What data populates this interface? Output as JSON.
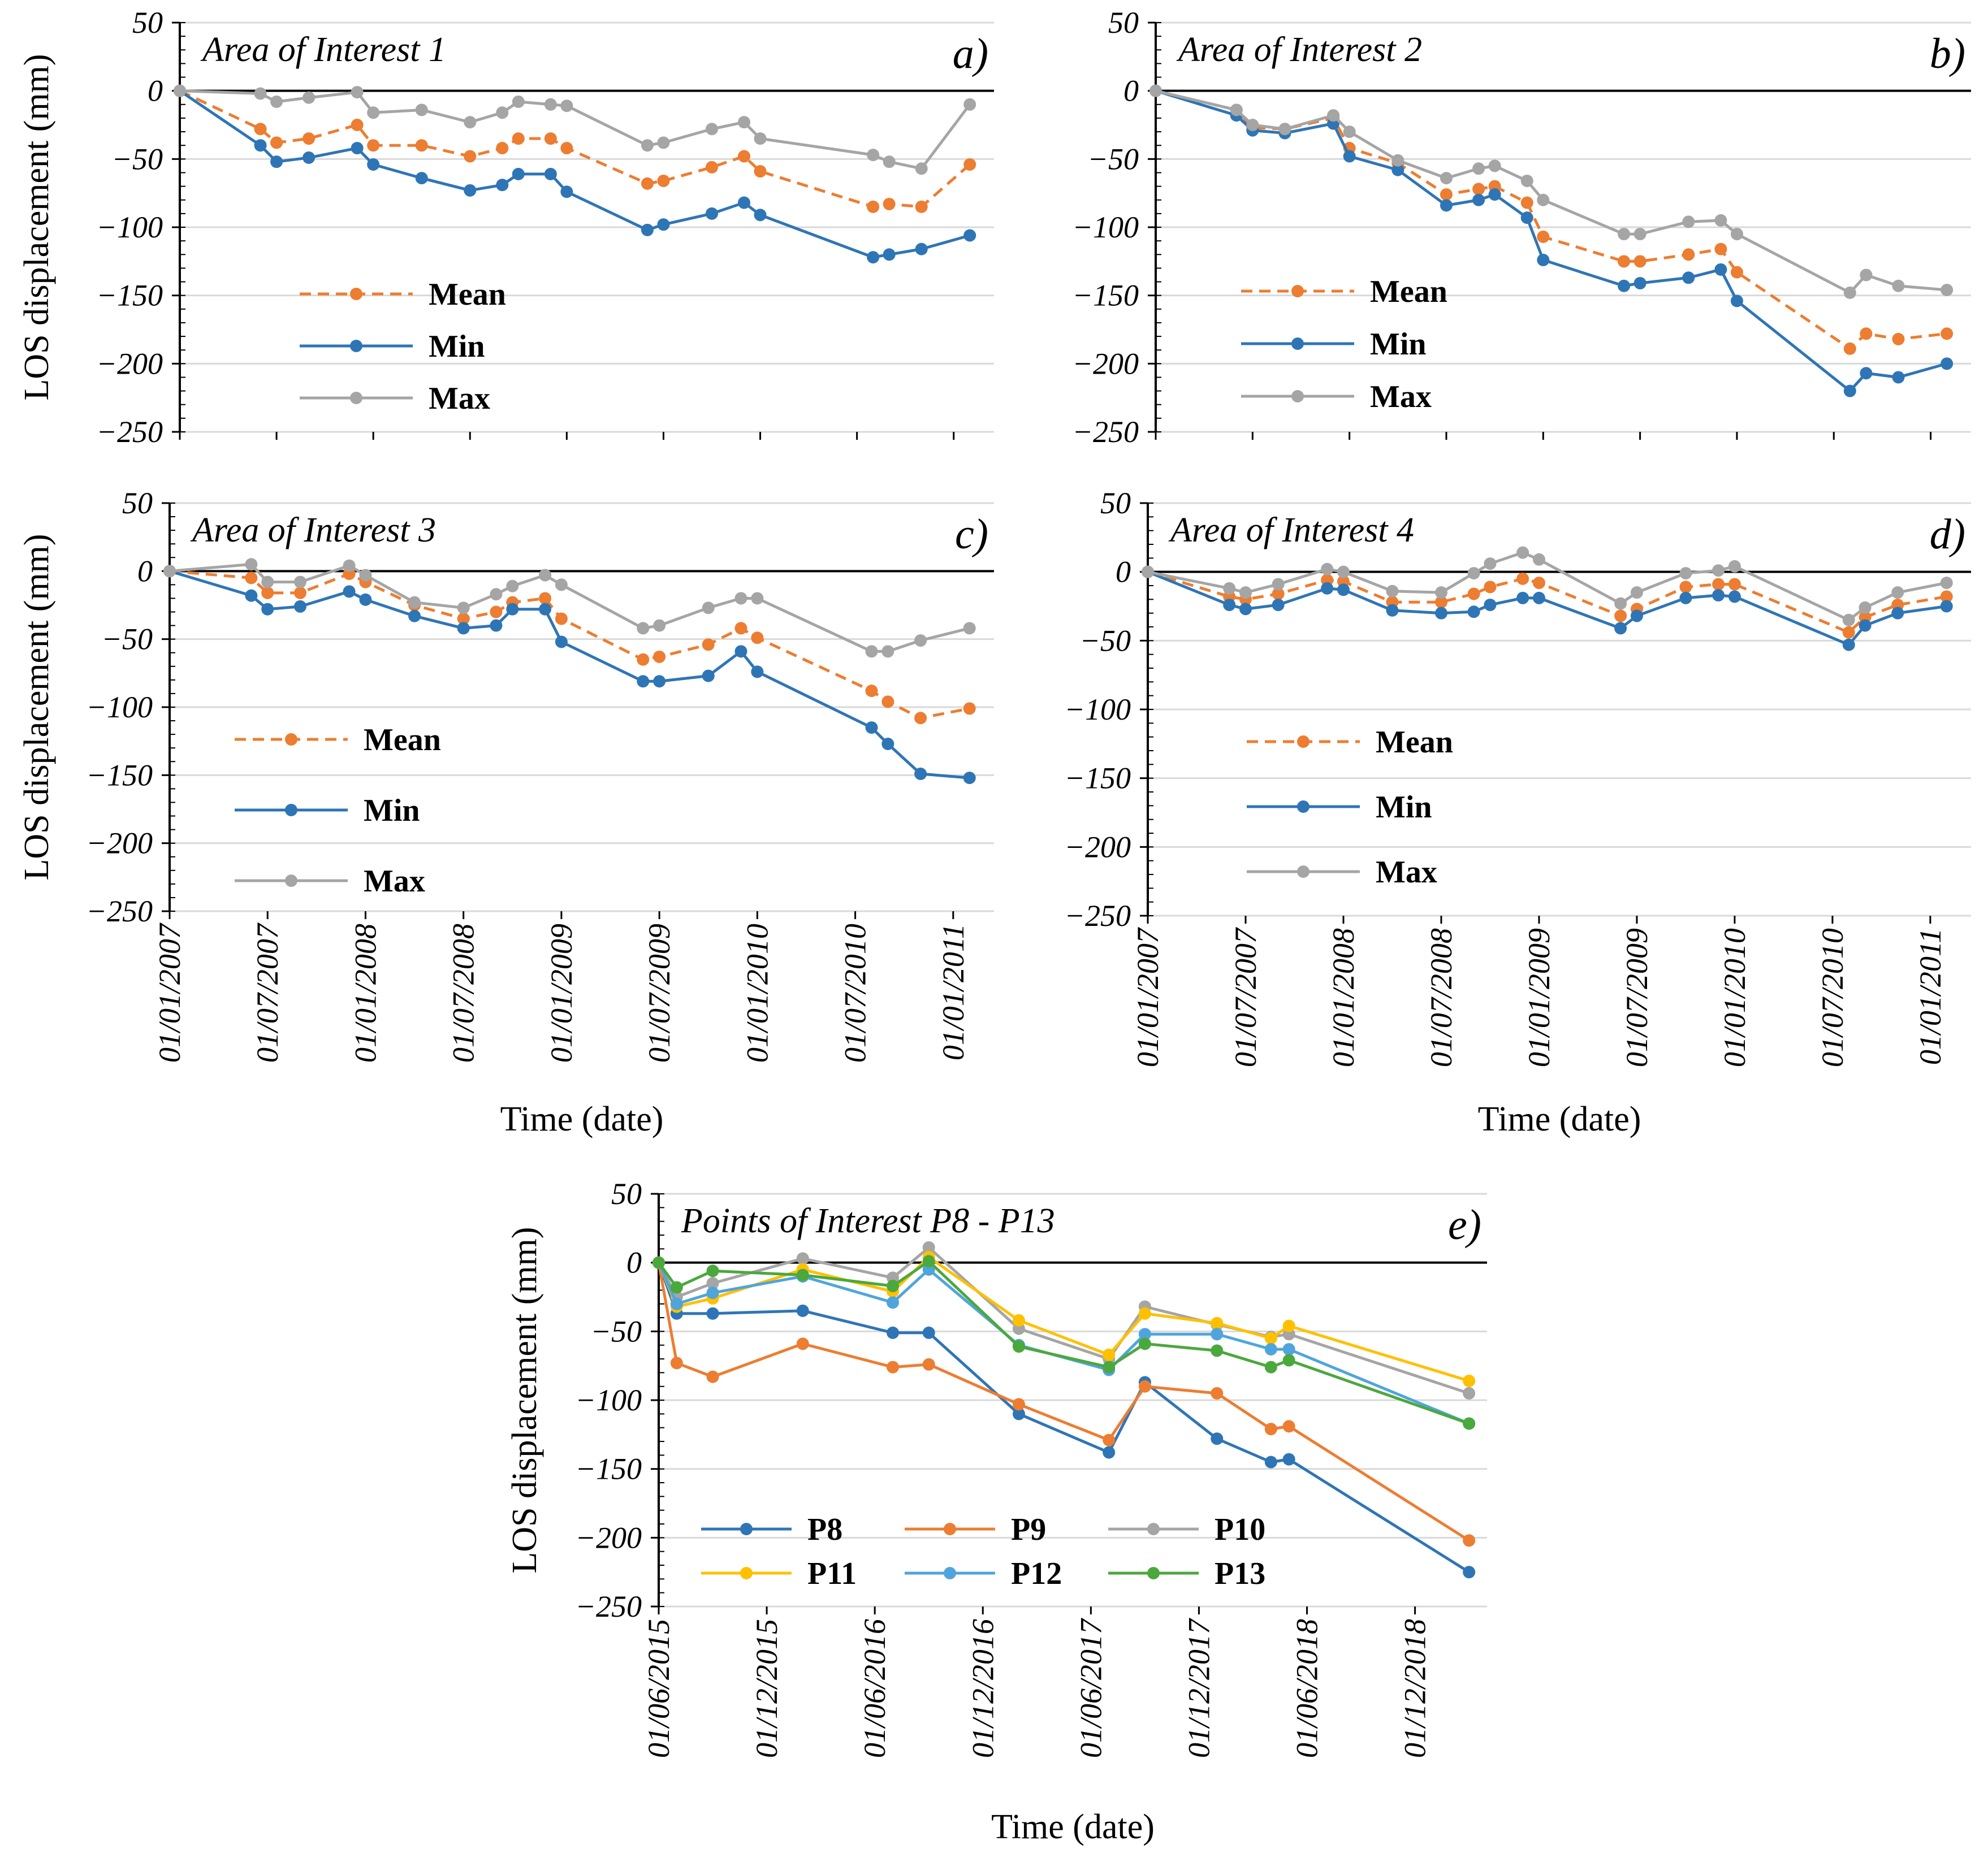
{
  "figure_labels": {
    "y_axis_label": "LOS displacement (mm)",
    "x_axis_label": "Time (date)"
  },
  "chart_data": [
    {
      "id": "a",
      "type": "line",
      "title": "Area of Interest 1",
      "letter": "a)",
      "ylabel": "LOS displacement (mm)",
      "xlabel": "",
      "ylim": [
        -250,
        50
      ],
      "yticks": [
        50,
        0,
        -50,
        -100,
        -150,
        -200,
        -250
      ],
      "xrange": [
        0,
        50.5
      ],
      "xtick_positions": [
        0,
        6,
        12,
        18,
        24,
        30,
        36,
        42,
        48
      ],
      "xtick_labels": [],
      "legend": {
        "position": "left-middle",
        "entries": [
          "Mean",
          "Min",
          "Max"
        ]
      },
      "series": [
        {
          "name": "Mean",
          "style": "dashed",
          "color": "#ED7D31",
          "x": [
            0,
            5,
            6,
            8,
            11,
            12,
            15,
            18,
            20,
            21,
            23,
            24,
            29,
            30,
            33,
            35,
            36,
            43,
            44,
            46,
            49
          ],
          "y": [
            0,
            -28,
            -38,
            -35,
            -25,
            -40,
            -40,
            -48,
            -42,
            -35,
            -35,
            -42,
            -68,
            -66,
            -56,
            -48,
            -59,
            -85,
            -83,
            -85,
            -54
          ]
        },
        {
          "name": "Min",
          "style": "solid",
          "color": "#2E75B6",
          "x": [
            0,
            5,
            6,
            8,
            11,
            12,
            15,
            18,
            20,
            21,
            23,
            24,
            29,
            30,
            33,
            35,
            36,
            43,
            44,
            46,
            49
          ],
          "y": [
            0,
            -40,
            -52,
            -49,
            -42,
            -54,
            -64,
            -73,
            -69,
            -61,
            -61,
            -74,
            -102,
            -98,
            -90,
            -82,
            -91,
            -122,
            -120,
            -116,
            -106
          ]
        },
        {
          "name": "Max",
          "style": "solid",
          "color": "#A5A5A5",
          "x": [
            0,
            5,
            6,
            8,
            11,
            12,
            15,
            18,
            20,
            21,
            23,
            24,
            29,
            30,
            33,
            35,
            36,
            43,
            44,
            46,
            49
          ],
          "y": [
            0,
            -2,
            -8,
            -5,
            -1,
            -16,
            -14,
            -23,
            -16,
            -8,
            -10,
            -11,
            -40,
            -38,
            -28,
            -23,
            -35,
            -47,
            -52,
            -57,
            -10
          ]
        }
      ]
    },
    {
      "id": "b",
      "type": "line",
      "title": "Area of Interest 2",
      "letter": "b)",
      "ylabel": "",
      "xlabel": "",
      "ylim": [
        -250,
        50
      ],
      "yticks": [
        50,
        0,
        -50,
        -100,
        -150,
        -200,
        -250
      ],
      "xrange": [
        0,
        50.5
      ],
      "xtick_positions": [
        0,
        6,
        12,
        18,
        24,
        30,
        36,
        42,
        48
      ],
      "xtick_labels": [],
      "legend": {
        "position": "left-middle",
        "entries": [
          "Mean",
          "Min",
          "Max"
        ]
      },
      "series": [
        {
          "name": "Mean",
          "style": "dashed",
          "color": "#ED7D31",
          "x": [
            0,
            5,
            6,
            8,
            11,
            12,
            15,
            18,
            20,
            21,
            23,
            24,
            29,
            30,
            33,
            35,
            36,
            43,
            44,
            46,
            49
          ],
          "y": [
            0,
            -14,
            -27,
            -28,
            -20,
            -42,
            -53,
            -76,
            -72,
            -70,
            -82,
            -107,
            -125,
            -125,
            -120,
            -116,
            -133,
            -189,
            -178,
            -182,
            -178
          ]
        },
        {
          "name": "Min",
          "style": "solid",
          "color": "#2E75B6",
          "x": [
            0,
            5,
            6,
            8,
            11,
            12,
            15,
            18,
            20,
            21,
            23,
            24,
            29,
            30,
            33,
            35,
            36,
            43,
            44,
            46,
            49
          ],
          "y": [
            0,
            -18,
            -29,
            -31,
            -24,
            -48,
            -58,
            -84,
            -80,
            -76,
            -93,
            -124,
            -143,
            -141,
            -137,
            -131,
            -154,
            -220,
            -207,
            -210,
            -200
          ]
        },
        {
          "name": "Max",
          "style": "solid",
          "color": "#A5A5A5",
          "x": [
            0,
            5,
            6,
            8,
            11,
            12,
            15,
            18,
            20,
            21,
            23,
            24,
            29,
            30,
            33,
            35,
            36,
            43,
            44,
            46,
            49
          ],
          "y": [
            0,
            -14,
            -25,
            -28,
            -18,
            -30,
            -51,
            -64,
            -57,
            -55,
            -66,
            -80,
            -105,
            -105,
            -96,
            -95,
            -105,
            -148,
            -135,
            -143,
            -146
          ]
        }
      ]
    },
    {
      "id": "c",
      "type": "line",
      "title": "Area of Interest 3",
      "letter": "c)",
      "ylabel": "LOS displacement (mm)",
      "xlabel": "Time (date)",
      "ylim": [
        -250,
        50
      ],
      "yticks": [
        50,
        0,
        -50,
        -100,
        -150,
        -200,
        -250
      ],
      "xrange": [
        0,
        50.5
      ],
      "xtick_positions": [
        0,
        6,
        12,
        18,
        24,
        30,
        36,
        42,
        48
      ],
      "xtick_labels": [
        "01/01/2007",
        "01/07/2007",
        "01/01/2008",
        "01/07/2008",
        "01/01/2009",
        "01/07/2009",
        "01/01/2010",
        "01/07/2010",
        "01/01/2011"
      ],
      "legend": {
        "position": "left-bottom",
        "entries": [
          "Mean",
          "Min",
          "Max"
        ]
      },
      "series": [
        {
          "name": "Mean",
          "style": "dashed",
          "color": "#ED7D31",
          "x": [
            0,
            5,
            6,
            8,
            11,
            12,
            15,
            18,
            20,
            21,
            23,
            24,
            29,
            30,
            33,
            35,
            36,
            43,
            44,
            46,
            49
          ],
          "y": [
            0,
            -5,
            -16,
            -16,
            -2,
            -8,
            -25,
            -35,
            -30,
            -23,
            -20,
            -35,
            -65,
            -63,
            -54,
            -42,
            -49,
            -88,
            -96,
            -108,
            -101
          ]
        },
        {
          "name": "Min",
          "style": "solid",
          "color": "#2E75B6",
          "x": [
            0,
            5,
            6,
            8,
            11,
            12,
            15,
            18,
            20,
            21,
            23,
            24,
            29,
            30,
            33,
            35,
            36,
            43,
            44,
            46,
            49
          ],
          "y": [
            0,
            -18,
            -28,
            -26,
            -15,
            -21,
            -33,
            -42,
            -40,
            -28,
            -28,
            -52,
            -81,
            -81,
            -77,
            -59,
            -74,
            -115,
            -127,
            -149,
            -152
          ]
        },
        {
          "name": "Max",
          "style": "solid",
          "color": "#A5A5A5",
          "x": [
            0,
            5,
            6,
            8,
            11,
            12,
            15,
            18,
            20,
            21,
            23,
            24,
            29,
            30,
            33,
            35,
            36,
            43,
            44,
            46,
            49
          ],
          "y": [
            0,
            5,
            -8,
            -8,
            4,
            -3,
            -23,
            -27,
            -17,
            -11,
            -3,
            -10,
            -42,
            -40,
            -27,
            -20,
            -20,
            -59,
            -59,
            -51,
            -42
          ]
        }
      ]
    },
    {
      "id": "d",
      "type": "line",
      "title": "Area of Interest 4",
      "letter": "d)",
      "ylabel": "",
      "xlabel": "Time (date)",
      "ylim": [
        -250,
        50
      ],
      "yticks": [
        50,
        0,
        -50,
        -100,
        -150,
        -200,
        -250
      ],
      "xrange": [
        0,
        50.5
      ],
      "xtick_positions": [
        0,
        6,
        12,
        18,
        24,
        30,
        36,
        42,
        48
      ],
      "xtick_labels": [
        "01/01/2007",
        "01/07/2007",
        "01/01/2008",
        "01/07/2008",
        "01/01/2009",
        "01/07/2009",
        "01/01/2010",
        "01/07/2010",
        "01/01/2011"
      ],
      "legend": {
        "position": "left-bottom",
        "entries": [
          "Mean",
          "Min",
          "Max"
        ]
      },
      "series": [
        {
          "name": "Mean",
          "style": "dashed",
          "color": "#ED7D31",
          "x": [
            0,
            5,
            6,
            8,
            11,
            12,
            15,
            18,
            20,
            21,
            23,
            24,
            29,
            30,
            33,
            35,
            36,
            43,
            44,
            46,
            49
          ],
          "y": [
            0,
            -18,
            -20,
            -16,
            -6,
            -7,
            -22,
            -22,
            -16,
            -11,
            -5,
            -8,
            -32,
            -27,
            -11,
            -9,
            -9,
            -44,
            -33,
            -24,
            -18
          ]
        },
        {
          "name": "Min",
          "style": "solid",
          "color": "#2E75B6",
          "x": [
            0,
            5,
            6,
            8,
            11,
            12,
            15,
            18,
            20,
            21,
            23,
            24,
            29,
            30,
            33,
            35,
            36,
            43,
            44,
            46,
            49
          ],
          "y": [
            0,
            -24,
            -27,
            -24,
            -12,
            -13,
            -28,
            -30,
            -29,
            -24,
            -19,
            -19,
            -41,
            -32,
            -19,
            -17,
            -18,
            -53,
            -39,
            -30,
            -25
          ]
        },
        {
          "name": "Max",
          "style": "solid",
          "color": "#A5A5A5",
          "x": [
            0,
            5,
            6,
            8,
            11,
            12,
            15,
            18,
            20,
            21,
            23,
            24,
            29,
            30,
            33,
            35,
            36,
            43,
            44,
            46,
            49
          ],
          "y": [
            0,
            -12,
            -15,
            -9,
            2,
            0,
            -14,
            -15,
            -1,
            6,
            14,
            9,
            -23,
            -15,
            -1,
            1,
            4,
            -35,
            -26,
            -15,
            -8
          ]
        }
      ]
    },
    {
      "id": "e",
      "type": "line",
      "title": "Points of Interest P8 - P13",
      "letter": "e)",
      "ylabel": "LOS displacement (mm)",
      "xlabel": "Time (date)",
      "ylim": [
        -250,
        50
      ],
      "yticks": [
        50,
        0,
        -50,
        -100,
        -150,
        -200,
        -250
      ],
      "xrange": [
        0,
        46
      ],
      "xtick_positions": [
        0,
        6,
        12,
        18,
        24,
        30,
        36,
        42
      ],
      "xtick_labels": [
        "01/06/2015",
        "01/12/2015",
        "01/06/2016",
        "01/12/2016",
        "01/06/2017",
        "01/12/2017",
        "01/06/2018",
        "01/12/2018"
      ],
      "legend": {
        "position": "bottom",
        "entries": [
          "P8",
          "P9",
          "P10",
          "P11",
          "P12",
          "P13"
        ]
      },
      "series": [
        {
          "name": "P8",
          "style": "solid",
          "color": "#2E75B6",
          "x": [
            0,
            1,
            3,
            8,
            13,
            15,
            20,
            25,
            27,
            31,
            34,
            35,
            45
          ],
          "y": [
            0,
            -37,
            -37,
            -35,
            -51,
            -51,
            -110,
            -138,
            -87,
            -128,
            -145,
            -143,
            -225
          ]
        },
        {
          "name": "P9",
          "style": "solid",
          "color": "#ED7D31",
          "x": [
            0,
            1,
            3,
            8,
            13,
            15,
            20,
            25,
            27,
            31,
            34,
            35,
            45
          ],
          "y": [
            0,
            -73,
            -83,
            -59,
            -76,
            -74,
            -103,
            -129,
            -90,
            -95,
            -121,
            -119,
            -202
          ]
        },
        {
          "name": "P10",
          "style": "solid",
          "color": "#A5A5A5",
          "x": [
            0,
            1,
            3,
            8,
            13,
            15,
            20,
            25,
            27,
            31,
            34,
            35,
            45
          ],
          "y": [
            0,
            -25,
            -15,
            3,
            -11,
            11,
            -48,
            -70,
            -32,
            -45,
            -54,
            -52,
            -95
          ]
        },
        {
          "name": "P11",
          "style": "solid",
          "color": "#FFC000",
          "x": [
            0,
            1,
            3,
            8,
            13,
            15,
            20,
            25,
            27,
            31,
            34,
            35,
            45
          ],
          "y": [
            0,
            -32,
            -26,
            -5,
            -21,
            4,
            -42,
            -67,
            -37,
            -44,
            -55,
            -46,
            -86
          ]
        },
        {
          "name": "P12",
          "style": "solid",
          "color": "#4FA5DB",
          "x": [
            0,
            1,
            3,
            8,
            13,
            15,
            20,
            25,
            27,
            31,
            34,
            35,
            45
          ],
          "y": [
            0,
            -30,
            -22,
            -10,
            -29,
            -5,
            -60,
            -78,
            -52,
            -52,
            -63,
            -63,
            -117
          ]
        },
        {
          "name": "P13",
          "style": "solid",
          "color": "#4BA83D",
          "x": [
            0,
            1,
            3,
            8,
            13,
            15,
            20,
            25,
            27,
            31,
            34,
            35,
            45
          ],
          "y": [
            0,
            -18,
            -6,
            -9,
            -17,
            1,
            -61,
            -76,
            -59,
            -64,
            -76,
            -71,
            -117
          ]
        }
      ]
    }
  ]
}
